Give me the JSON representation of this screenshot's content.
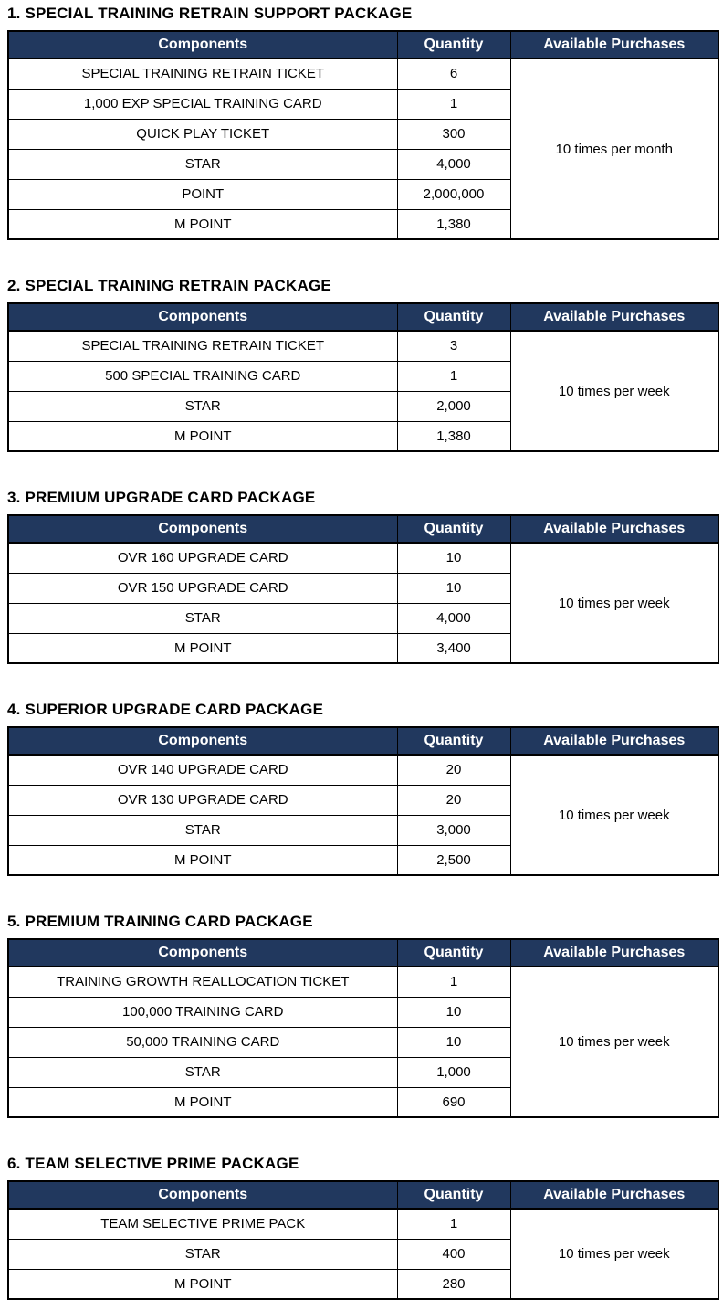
{
  "colors": {
    "header_bg": "#21385E",
    "header_text": "#FFFFFF",
    "border": "#000000",
    "body_text": "#000000",
    "page_bg": "#FFFFFF"
  },
  "columns": [
    "Components",
    "Quantity",
    "Available Purchases"
  ],
  "tables": [
    {
      "title": "1. SPECIAL TRAINING RETRAIN SUPPORT PACKAGE",
      "available_purchases": "10 times per month",
      "rows": [
        {
          "component": "SPECIAL TRAINING RETRAIN TICKET",
          "quantity": "6"
        },
        {
          "component": "1,000 EXP SPECIAL TRAINING CARD",
          "quantity": "1"
        },
        {
          "component": "QUICK PLAY TICKET",
          "quantity": "300"
        },
        {
          "component": "STAR",
          "quantity": "4,000"
        },
        {
          "component": "POINT",
          "quantity": "2,000,000"
        },
        {
          "component": "M POINT",
          "quantity": "1,380"
        }
      ]
    },
    {
      "title": "2. SPECIAL TRAINING RETRAIN PACKAGE",
      "available_purchases": "10 times per week",
      "rows": [
        {
          "component": "SPECIAL TRAINING RETRAIN TICKET",
          "quantity": "3"
        },
        {
          "component": "500 SPECIAL TRAINING CARD",
          "quantity": "1"
        },
        {
          "component": "STAR",
          "quantity": "2,000"
        },
        {
          "component": "M POINT",
          "quantity": "1,380"
        }
      ]
    },
    {
      "title": "3. PREMIUM UPGRADE CARD PACKAGE",
      "available_purchases": "10 times per week",
      "rows": [
        {
          "component": "OVR 160 UPGRADE CARD",
          "quantity": "10"
        },
        {
          "component": "OVR 150 UPGRADE CARD",
          "quantity": "10"
        },
        {
          "component": "STAR",
          "quantity": "4,000"
        },
        {
          "component": "M POINT",
          "quantity": "3,400"
        }
      ]
    },
    {
      "title": "4. SUPERIOR UPGRADE CARD PACKAGE",
      "available_purchases": "10 times per week",
      "rows": [
        {
          "component": "OVR 140 UPGRADE CARD",
          "quantity": "20"
        },
        {
          "component": "OVR 130 UPGRADE CARD",
          "quantity": "20"
        },
        {
          "component": "STAR",
          "quantity": "3,000"
        },
        {
          "component": "M POINT",
          "quantity": "2,500"
        }
      ]
    },
    {
      "title": "5. PREMIUM TRAINING CARD PACKAGE",
      "available_purchases": "10 times per week",
      "rows": [
        {
          "component": "TRAINING GROWTH REALLOCATION TICKET",
          "quantity": "1"
        },
        {
          "component": "100,000 TRAINING CARD",
          "quantity": "10"
        },
        {
          "component": "50,000 TRAINING CARD",
          "quantity": "10"
        },
        {
          "component": "STAR",
          "quantity": "1,000"
        },
        {
          "component": "M POINT",
          "quantity": "690"
        }
      ]
    },
    {
      "title": "6. TEAM SELECTIVE PRIME PACKAGE",
      "available_purchases": "10 times per week",
      "rows": [
        {
          "component": "TEAM SELECTIVE PRIME PACK",
          "quantity": "1"
        },
        {
          "component": "STAR",
          "quantity": "400"
        },
        {
          "component": "M POINT",
          "quantity": "280"
        }
      ]
    }
  ]
}
